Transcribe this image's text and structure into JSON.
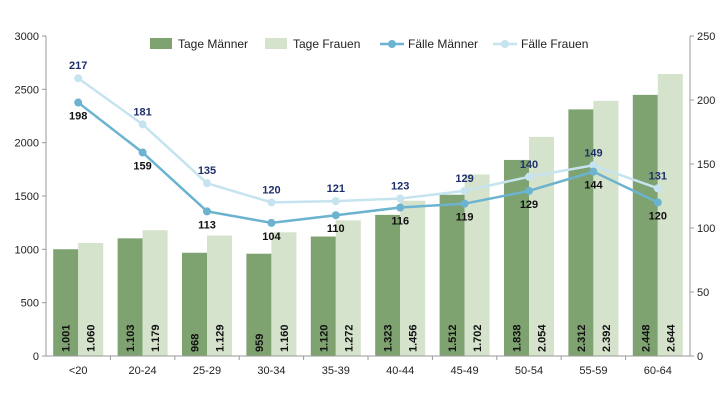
{
  "chart_data": {
    "type": "bar",
    "categories": [
      "<20",
      "20-24",
      "25-29",
      "30-34",
      "35-39",
      "40-44",
      "45-49",
      "50-54",
      "55-59",
      "60-64"
    ],
    "series": [
      {
        "name": "Tage Männer",
        "type": "bar",
        "axis": "left",
        "color": "#7fa271",
        "values": [
          1001,
          1103,
          968,
          959,
          1120,
          1323,
          1512,
          1838,
          2312,
          2448
        ],
        "labels": [
          "1.001",
          "1.103",
          "968",
          "959",
          "1.120",
          "1.323",
          "1.512",
          "1.838",
          "2.312",
          "2.448"
        ]
      },
      {
        "name": "Tage Frauen",
        "type": "bar",
        "axis": "left",
        "color": "#d5e2cc",
        "values": [
          1060,
          1179,
          1129,
          1160,
          1272,
          1456,
          1702,
          2054,
          2392,
          2644
        ],
        "labels": [
          "1.060",
          "1.179",
          "1.129",
          "1.160",
          "1.272",
          "1.456",
          "1.702",
          "2.054",
          "2.392",
          "2.644"
        ]
      },
      {
        "name": "Fälle Männer",
        "type": "line",
        "axis": "right",
        "color": "#6cb3cf",
        "values": [
          198,
          159,
          113,
          104,
          110,
          116,
          119,
          129,
          144,
          120
        ],
        "labels": [
          "198",
          "159",
          "113",
          "104",
          "110",
          "116",
          "119",
          "129",
          "144",
          "120"
        ]
      },
      {
        "name": "Fälle Frauen",
        "type": "line",
        "axis": "right",
        "color": "#c6e4ef",
        "values": [
          217,
          181,
          135,
          120,
          121,
          123,
          129,
          140,
          149,
          131
        ],
        "labels": [
          "217",
          "181",
          "135",
          "120",
          "121",
          "123",
          "129",
          "140",
          "149",
          "131"
        ]
      }
    ],
    "ylim_left": [
      0,
      3000
    ],
    "yticks_left": [
      "0",
      "500",
      "1000",
      "1500",
      "2000",
      "2500",
      "3000"
    ],
    "ytick_values_left": [
      0,
      500,
      1000,
      1500,
      2000,
      2500,
      3000
    ],
    "ylim_right": [
      0,
      250
    ],
    "yticks_right": [
      "0",
      "50",
      "100",
      "150",
      "200",
      "250"
    ],
    "ytick_values_right": [
      0,
      50,
      100,
      150,
      200,
      250
    ],
    "legend_position": "top",
    "grid": false
  }
}
